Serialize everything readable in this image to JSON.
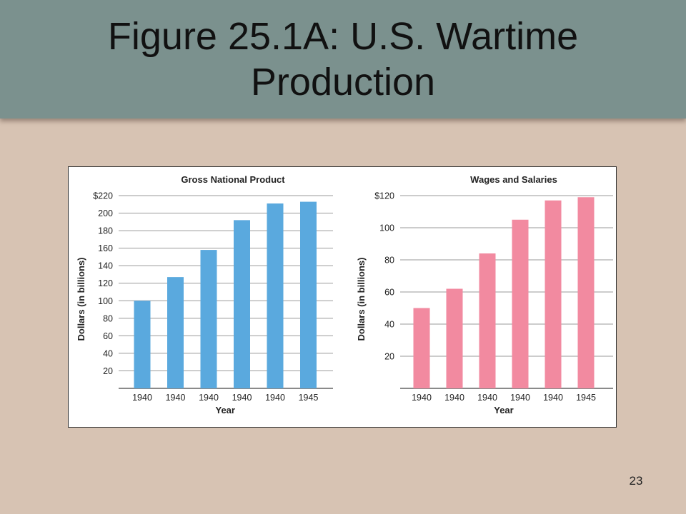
{
  "slide": {
    "title": "Figure 25.1A: U.S. Wartime Production",
    "page_number": "23"
  },
  "colors": {
    "title_bar": "#7b918e",
    "background": "#d7c3b3",
    "gnp_bar": "#5aa9de",
    "wages_bar": "#f28aa0"
  },
  "chart_data": [
    {
      "type": "bar",
      "title": "Gross National Product",
      "xlabel": "Year",
      "ylabel": "Dollars (in billions)",
      "categories": [
        "1940",
        "1940",
        "1940",
        "1940",
        "1940",
        "1945"
      ],
      "values": [
        100,
        127,
        158,
        192,
        211,
        213
      ],
      "ylim": [
        0,
        220
      ],
      "yticks": [
        20,
        40,
        60,
        80,
        100,
        120,
        140,
        160,
        180,
        200,
        220
      ],
      "ytick_labels": [
        "20",
        "40",
        "60",
        "80",
        "100",
        "120",
        "140",
        "160",
        "180",
        "200",
        "$220"
      ],
      "grid": true,
      "color": "#5aa9de"
    },
    {
      "type": "bar",
      "title": "Wages and Salaries",
      "xlabel": "Year",
      "ylabel": "Dollars (in billions)",
      "categories": [
        "1940",
        "1940",
        "1940",
        "1940",
        "1940",
        "1945"
      ],
      "values": [
        50,
        62,
        84,
        105,
        117,
        119
      ],
      "ylim": [
        0,
        120
      ],
      "yticks": [
        20,
        40,
        60,
        80,
        100,
        120
      ],
      "ytick_labels": [
        "20",
        "40",
        "60",
        "80",
        "100",
        "$120"
      ],
      "grid": true,
      "color": "#f28aa0"
    }
  ]
}
